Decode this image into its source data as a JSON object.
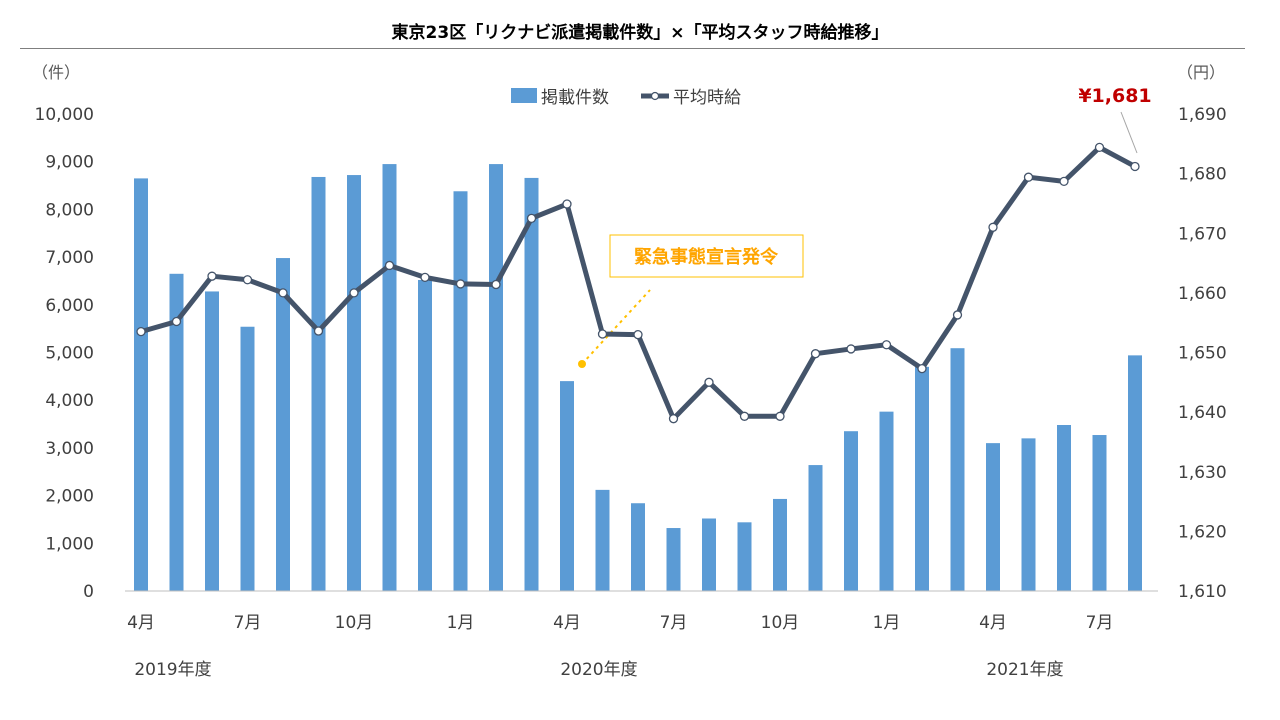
{
  "title": "東京23区「リクナビ派遣掲載件数」×「平均スタッフ時給推移」",
  "chart_data": {
    "type": "bar+line",
    "legend": {
      "placement": "top-center"
    },
    "left_axis": {
      "unit_label": "（件）",
      "ylim": [
        0,
        10000
      ],
      "ticks": [
        "0",
        "1,000",
        "2,000",
        "3,000",
        "4,000",
        "5,000",
        "6,000",
        "7,000",
        "8,000",
        "9,000",
        "10,000"
      ]
    },
    "right_axis": {
      "unit_label": "（円）",
      "ylim": [
        1610,
        1690
      ],
      "ticks": [
        "1,610",
        "1,620",
        "1,630",
        "1,640",
        "1,650",
        "1,660",
        "1,670",
        "1,680",
        "1,690"
      ]
    },
    "months": [
      "4月",
      "",
      "",
      "7月",
      "",
      "",
      "10月",
      "",
      "",
      "1月",
      "",
      "",
      "4月",
      "",
      "",
      "7月",
      "",
      "",
      "10月",
      "",
      "",
      "1月",
      "",
      "",
      "4月",
      "",
      "",
      "7月",
      ""
    ],
    "fiscal_years": [
      {
        "label": "2019年度",
        "start_index": 0
      },
      {
        "label": "2020年度",
        "start_index": 12
      },
      {
        "label": "2021年度",
        "start_index": 24
      }
    ],
    "series": [
      {
        "name": "掲載件数",
        "type": "bar",
        "axis": "left",
        "color": "#5b9bd5",
        "values": [
          8650,
          6650,
          6280,
          5540,
          6980,
          8680,
          8720,
          8950,
          6520,
          8380,
          8950,
          8660,
          4400,
          2120,
          1840,
          1320,
          1520,
          1440,
          1930,
          2640,
          3350,
          3760,
          4700,
          5090,
          3100,
          3200,
          3480,
          3270,
          4940
        ]
      },
      {
        "name": "平均時給",
        "type": "line",
        "axis": "right",
        "color": "#44546a",
        "values": [
          1653.5,
          1655.2,
          1662.8,
          1662.2,
          1660.0,
          1653.6,
          1660.0,
          1664.6,
          1662.6,
          1661.5,
          1661.4,
          1672.5,
          1674.9,
          1653.1,
          1653.0,
          1638.9,
          1645.0,
          1639.3,
          1639.3,
          1649.8,
          1650.6,
          1651.3,
          1647.3,
          1656.3,
          1671.0,
          1679.4,
          1678.7,
          1684.4,
          1681.2
        ]
      }
    ],
    "annotations": [
      {
        "text": "緊急事態宣言発令",
        "color": "#ffa500"
      },
      {
        "text": "¥1,681",
        "color": "#c00000"
      }
    ]
  }
}
